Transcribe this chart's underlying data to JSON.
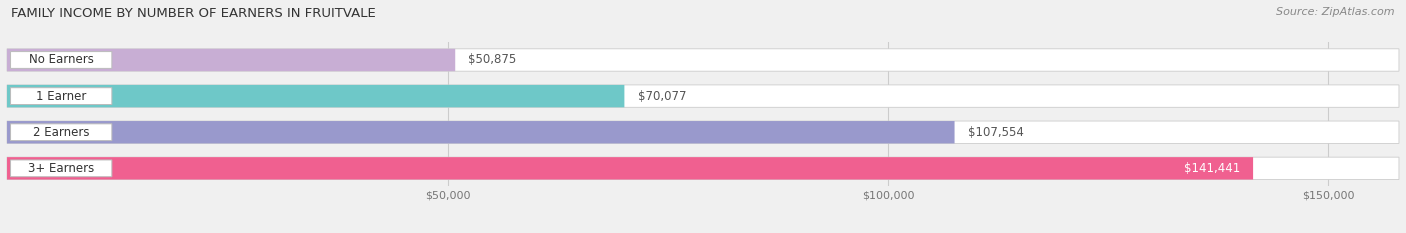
{
  "title": "FAMILY INCOME BY NUMBER OF EARNERS IN FRUITVALE",
  "source": "Source: ZipAtlas.com",
  "categories": [
    "No Earners",
    "1 Earner",
    "2 Earners",
    "3+ Earners"
  ],
  "values": [
    50875,
    70077,
    107554,
    141441
  ],
  "bar_colors": [
    "#c8aed4",
    "#6ec8c8",
    "#9999cc",
    "#f06090"
  ],
  "label_colors": [
    "#444444",
    "#444444",
    "#444444",
    "#444444"
  ],
  "value_label_colors": [
    "#555555",
    "#555555",
    "#555555",
    "#ffffff"
  ],
  "x_ticks": [
    50000,
    100000,
    150000
  ],
  "x_tick_labels": [
    "$50,000",
    "$100,000",
    "$150,000"
  ],
  "x_min": 0,
  "x_max": 158000,
  "value_labels": [
    "$50,875",
    "$70,077",
    "$107,554",
    "$141,441"
  ],
  "bg_color": "#f0f0f0",
  "bar_bg_color": "#ffffff",
  "title_fontsize": 9.5,
  "source_fontsize": 8,
  "label_fontsize": 8.5,
  "value_fontsize": 8.5,
  "tick_fontsize": 8
}
